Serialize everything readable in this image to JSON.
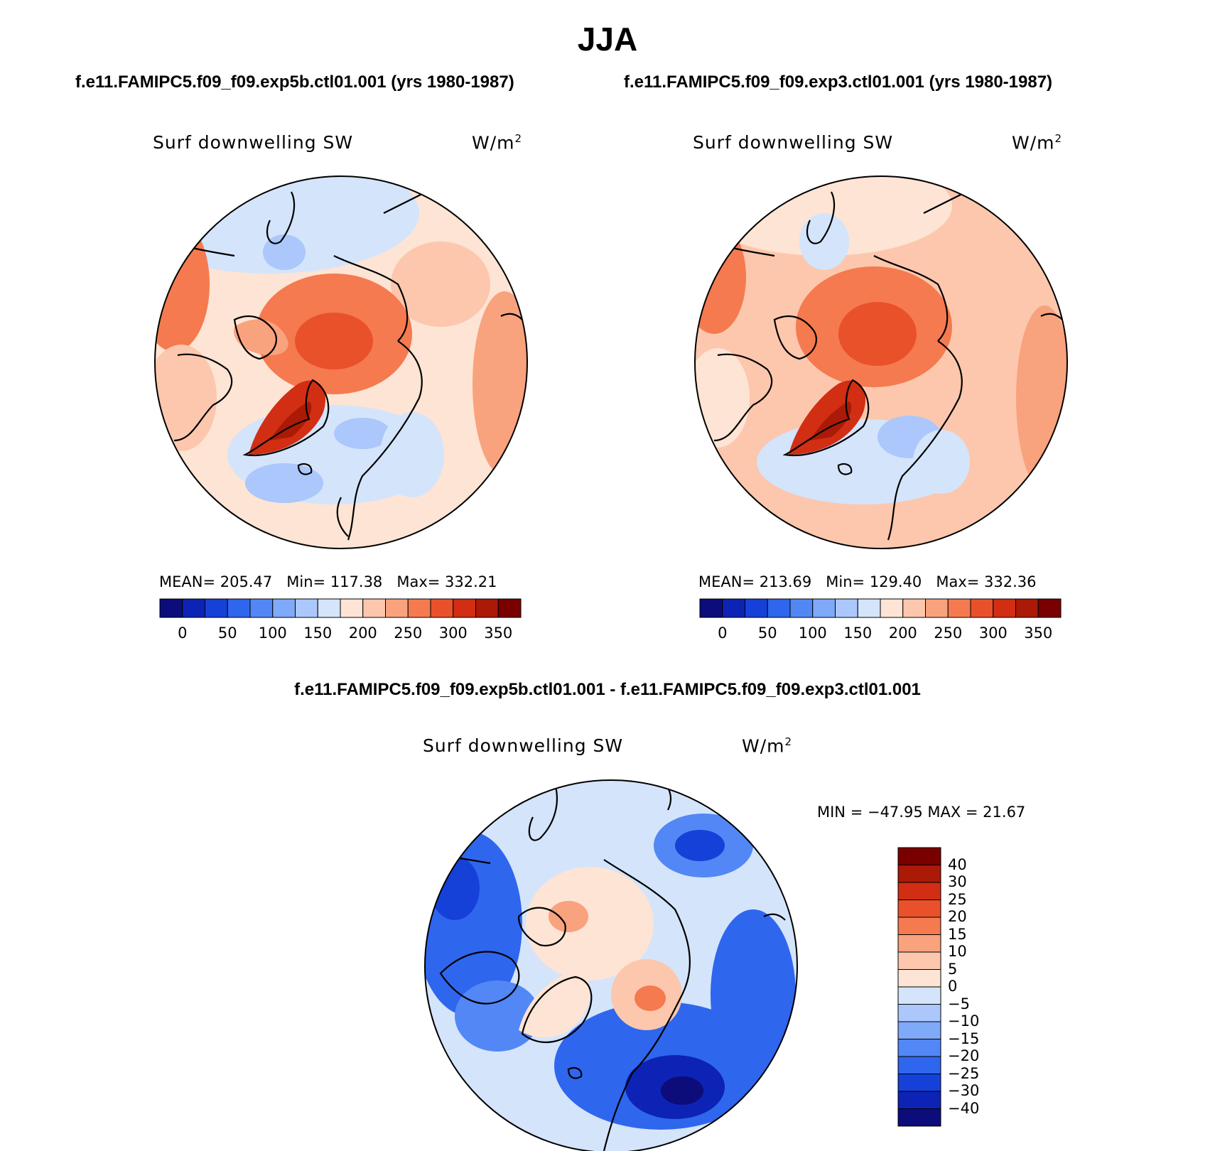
{
  "title": "JJA",
  "panel_left": {
    "case": "f.e11.FAMIPC5.f09_f09.exp5b.ctl01.001 (yrs 1980-1987)",
    "variable": "Surf downwelling SW",
    "units_base": "W/m",
    "units_exp": "2",
    "mean_label": "MEAN=",
    "mean": "205.47",
    "min_label": "Min=",
    "min": "117.38",
    "max_label": "Max=",
    "max": "332.21"
  },
  "panel_right": {
    "case": "f.e11.FAMIPC5.f09_f09.exp3.ctl01.001 (yrs 1980-1987)",
    "variable": "Surf downwelling SW",
    "units_base": "W/m",
    "units_exp": "2",
    "mean_label": "MEAN=",
    "mean": "213.69",
    "min_label": "Min=",
    "min": "129.40",
    "max_label": "Max=",
    "max": "332.36"
  },
  "panel_diff": {
    "case": "f.e11.FAMIPC5.f09_f09.exp5b.ctl01.001 - f.e11.FAMIPC5.f09_f09.exp3.ctl01.001",
    "variable": "Surf downwelling SW",
    "units_base": "W/m",
    "units_exp": "2",
    "minmax": "MIN = −47.95 MAX =  21.67"
  },
  "chart_data": [
    {
      "type": "heatmap",
      "projection": "north polar stereographic",
      "title": "Surf downwelling SW",
      "units": "W/m2",
      "case": "f.e11.FAMIPC5.f09_f09.exp5b.ctl01.001 (yrs 1980-1987)",
      "mean": 205.47,
      "min": 117.38,
      "max": 332.21,
      "colorbar_ticks": [
        "0",
        "50",
        "100",
        "150",
        "200",
        "250",
        "300",
        "350"
      ],
      "colorbar_colors": [
        "#0c0c7a",
        "#0d23b5",
        "#1541d8",
        "#2f66ee",
        "#5287f5",
        "#7fa9f9",
        "#abc7fb",
        "#d4e4fb",
        "#fde4d4",
        "#fcc7ad",
        "#f9a27e",
        "#f57a4f",
        "#e9512b",
        "#d12e13",
        "#aa1a07",
        "#7a0000"
      ]
    },
    {
      "type": "heatmap",
      "projection": "north polar stereographic",
      "title": "Surf downwelling SW",
      "units": "W/m2",
      "case": "f.e11.FAMIPC5.f09_f09.exp3.ctl01.001 (yrs 1980-1987)",
      "mean": 213.69,
      "min": 129.4,
      "max": 332.36,
      "colorbar_ticks": [
        "0",
        "50",
        "100",
        "150",
        "200",
        "250",
        "300",
        "350"
      ],
      "colorbar_colors": [
        "#0c0c7a",
        "#0d23b5",
        "#1541d8",
        "#2f66ee",
        "#5287f5",
        "#7fa9f9",
        "#abc7fb",
        "#d4e4fb",
        "#fde4d4",
        "#fcc7ad",
        "#f9a27e",
        "#f57a4f",
        "#e9512b",
        "#d12e13",
        "#aa1a07",
        "#7a0000"
      ]
    },
    {
      "type": "heatmap",
      "projection": "north polar stereographic",
      "title": "Surf downwelling SW",
      "units": "W/m2",
      "case": "f.e11.FAMIPC5.f09_f09.exp5b.ctl01.001 - f.e11.FAMIPC5.f09_f09.exp3.ctl01.001",
      "min": -47.95,
      "max": 21.67,
      "colorbar_ticks": [
        "40",
        "30",
        "25",
        "20",
        "15",
        "10",
        "5",
        "0",
        "−5",
        "−10",
        "−15",
        "−20",
        "−25",
        "−30",
        "−40"
      ],
      "colorbar_colors": [
        "#7a0000",
        "#aa1a07",
        "#d12e13",
        "#e9512b",
        "#f57a4f",
        "#f9a27e",
        "#fcc7ad",
        "#fde4d4",
        "#d4e4fb",
        "#abc7fb",
        "#7fa9f9",
        "#5287f5",
        "#2f66ee",
        "#1541d8",
        "#0d23b5",
        "#0c0c7a"
      ]
    }
  ]
}
